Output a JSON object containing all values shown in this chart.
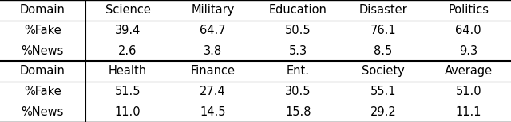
{
  "table1_header": [
    "Domain",
    "Science",
    "Military",
    "Education",
    "Disaster",
    "Politics"
  ],
  "table1_rows": [
    [
      "%Fake",
      "39.4",
      "64.7",
      "50.5",
      "76.1",
      "64.0"
    ],
    [
      "%News",
      "2.6",
      "3.8",
      "5.3",
      "8.5",
      "9.3"
    ]
  ],
  "table2_header": [
    "Domain",
    "Health",
    "Finance",
    "Ent.",
    "Society",
    "Average"
  ],
  "table2_rows": [
    [
      "%Fake",
      "51.5",
      "27.4",
      "30.5",
      "55.1",
      "51.0"
    ],
    [
      "%News",
      "11.0",
      "14.5",
      "15.8",
      "29.2",
      "11.1"
    ]
  ],
  "figsize": [
    6.4,
    1.54
  ],
  "dpi": 100,
  "font_size": 10.5
}
